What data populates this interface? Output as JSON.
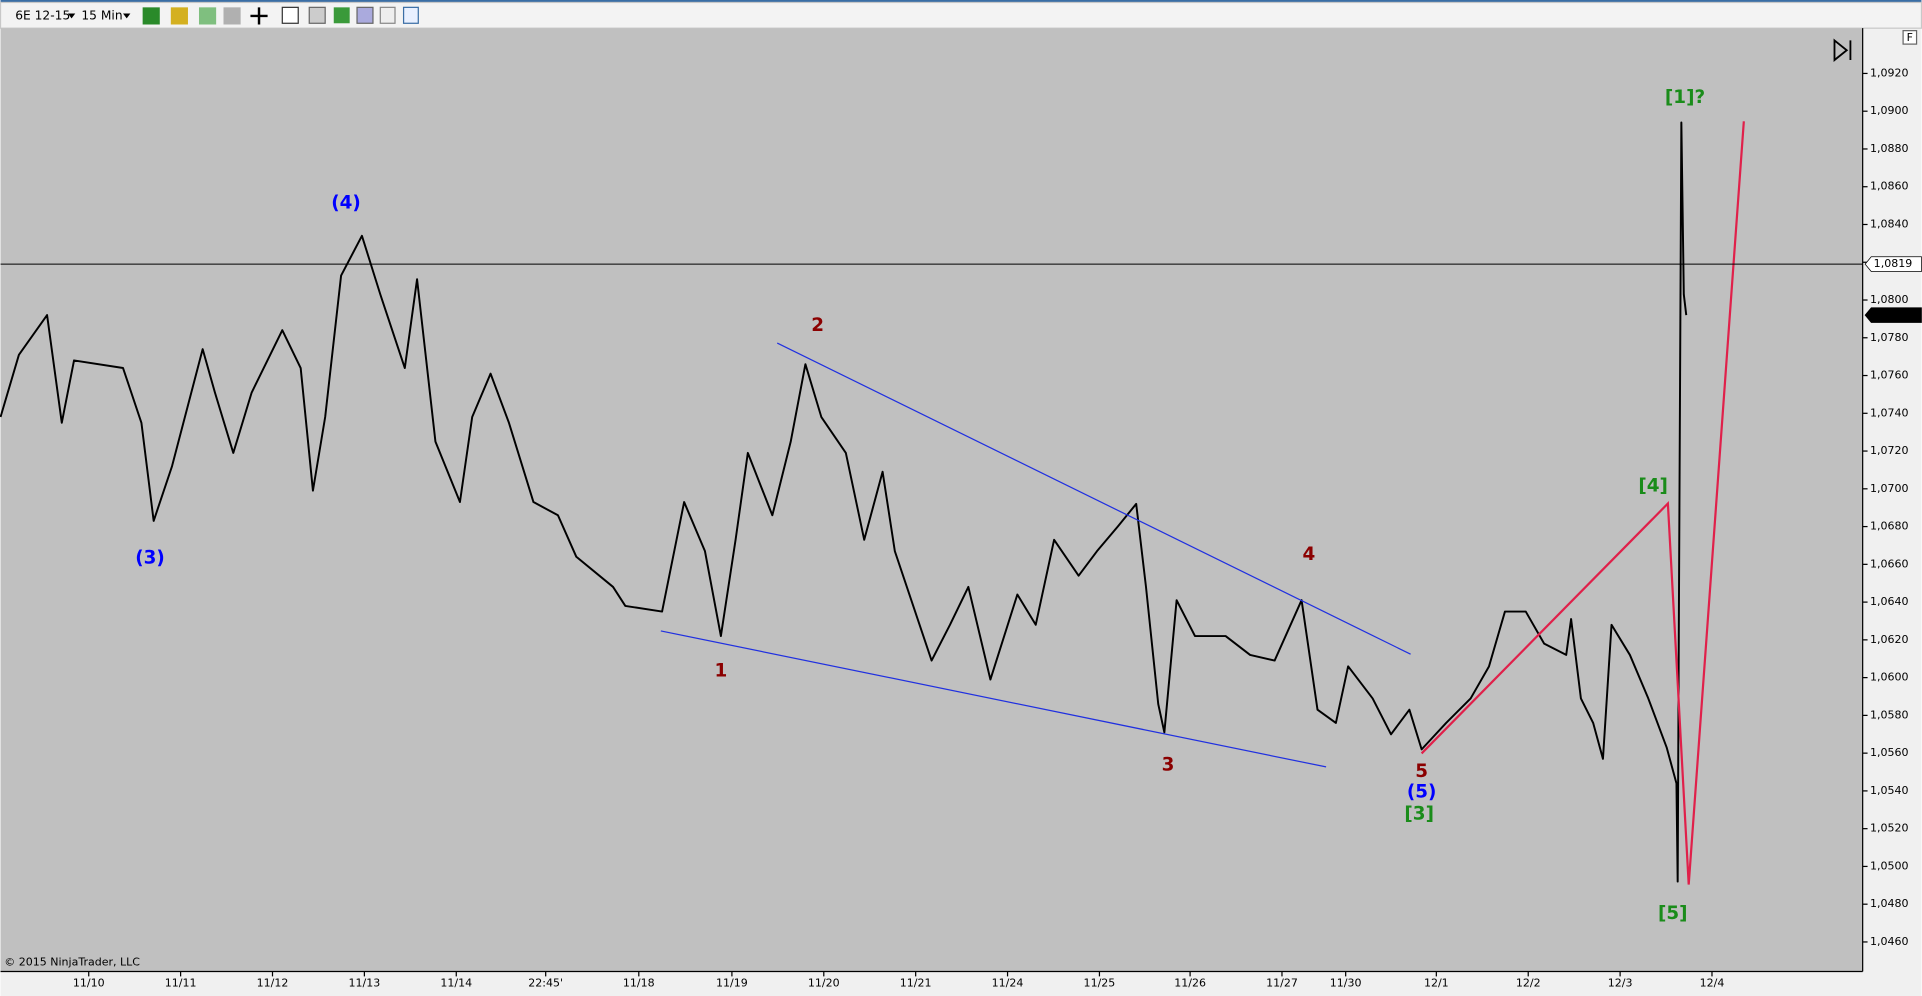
{
  "toolbar": {
    "instrument": "6E 12-15",
    "interval": "15 Min"
  },
  "copyright": "© 2015 NinjaTrader, LLC",
  "panel_button": "F",
  "chart_data": {
    "type": "line",
    "color": "#000000",
    "x": [
      0,
      15,
      38,
      50,
      60,
      100,
      115,
      125,
      140,
      165,
      175,
      190,
      205,
      230,
      245,
      255,
      265,
      278,
      295,
      310,
      330,
      340,
      355,
      375,
      385,
      400,
      415,
      435,
      455,
      470,
      500,
      510,
      540,
      558,
      575,
      588,
      600,
      610,
      630,
      645,
      657,
      670,
      690,
      705,
      720,
      730,
      760,
      775,
      790,
      808,
      830,
      845,
      860,
      880,
      895,
      912,
      927,
      935,
      945,
      950,
      960,
      975,
      1000,
      1020,
      1040,
      1062,
      1075,
      1090,
      1100,
      1120,
      1135,
      1150,
      1160,
      1180,
      1200,
      1215,
      1228,
      1245,
      1260,
      1278,
      1282,
      1290,
      1300,
      1308,
      1315,
      1330,
      1345,
      1360,
      1368,
      1369,
      1370,
      1372,
      1374,
      1376
    ],
    "values": [
      1.0738,
      1.0771,
      1.0792,
      1.0735,
      1.0768,
      1.0764,
      1.0735,
      1.0683,
      1.0712,
      1.0774,
      1.0751,
      1.0719,
      1.0751,
      1.0784,
      1.0764,
      1.0699,
      1.0738,
      1.0813,
      1.0834,
      1.0803,
      1.0764,
      1.0811,
      1.0725,
      1.0693,
      1.0738,
      1.0761,
      1.0735,
      1.0693,
      1.0686,
      1.0664,
      1.0648,
      1.0638,
      1.0635,
      1.0693,
      1.0667,
      1.0622,
      1.0673,
      1.0719,
      1.0686,
      1.0725,
      1.0766,
      1.0738,
      1.0719,
      1.0673,
      1.0709,
      1.0667,
      1.0609,
      1.0628,
      1.0648,
      1.0599,
      1.0644,
      1.0628,
      1.0673,
      1.0654,
      1.0667,
      1.068,
      1.0692,
      1.0648,
      1.0586,
      1.0571,
      1.0641,
      1.0622,
      1.0622,
      1.0612,
      1.0609,
      1.0641,
      1.0583,
      1.0576,
      1.0606,
      1.0589,
      1.057,
      1.0583,
      1.0562,
      1.0576,
      1.0589,
      1.0606,
      1.0635,
      1.0635,
      1.0618,
      1.0612,
      1.0631,
      1.0589,
      1.0576,
      1.0557,
      1.0628,
      1.0612,
      1.0589,
      1.0563,
      1.0544,
      1.0492,
      1.0635,
      1.0894,
      1.0803,
      1.0792
    ],
    "xlim": [
      0,
      1520
    ],
    "xticks": [
      {
        "value": 72,
        "label": "11/10"
      },
      {
        "value": 147,
        "label": "11/11"
      },
      {
        "value": 222,
        "label": "11/12"
      },
      {
        "value": 297,
        "label": "11/13"
      },
      {
        "value": 372,
        "label": "11/14"
      },
      {
        "value": 445,
        "label": "22:45'"
      },
      {
        "value": 521,
        "label": "11/18"
      },
      {
        "value": 597,
        "label": "11/19"
      },
      {
        "value": 672,
        "label": "11/20"
      },
      {
        "value": 747,
        "label": "11/21"
      },
      {
        "value": 822,
        "label": "11/24"
      },
      {
        "value": 897,
        "label": "11/25"
      },
      {
        "value": 971,
        "label": "11/26"
      },
      {
        "value": 1046,
        "label": "11/27"
      },
      {
        "value": 1098,
        "label": "11/30"
      },
      {
        "value": 1172,
        "label": "12/1"
      },
      {
        "value": 1247,
        "label": "12/2"
      },
      {
        "value": 1322,
        "label": "12/3"
      },
      {
        "value": 1397,
        "label": "12/4"
      }
    ],
    "ylim": [
      1.0445,
      1.0943
    ],
    "yticks": [
      {
        "value": 1.046,
        "label": "1,0460"
      },
      {
        "value": 1.048,
        "label": "1,0480"
      },
      {
        "value": 1.05,
        "label": "1,0500"
      },
      {
        "value": 1.052,
        "label": "1,0520"
      },
      {
        "value": 1.054,
        "label": "1,0540"
      },
      {
        "value": 1.056,
        "label": "1,0560"
      },
      {
        "value": 1.058,
        "label": "1,0580"
      },
      {
        "value": 1.06,
        "label": "1,0600"
      },
      {
        "value": 1.062,
        "label": "1,0620"
      },
      {
        "value": 1.064,
        "label": "1,0640"
      },
      {
        "value": 1.066,
        "label": "1,0660"
      },
      {
        "value": 1.068,
        "label": "1,0680"
      },
      {
        "value": 1.07,
        "label": "1,0700"
      },
      {
        "value": 1.072,
        "label": "1,0720"
      },
      {
        "value": 1.074,
        "label": "1,0740"
      },
      {
        "value": 1.076,
        "label": "1,0760"
      },
      {
        "value": 1.078,
        "label": "1,0780"
      },
      {
        "value": 1.08,
        "label": "1,0800"
      },
      {
        "value": 1.082,
        "label": "1,0820"
      },
      {
        "value": 1.084,
        "label": "1,0840"
      },
      {
        "value": 1.086,
        "label": "1,0860"
      },
      {
        "value": 1.088,
        "label": "1,0880"
      },
      {
        "value": 1.09,
        "label": "1,0900"
      },
      {
        "value": 1.092,
        "label": "1,0920"
      }
    ],
    "price_markers": [
      {
        "value": 1.0819,
        "label": "1,0819",
        "style": "line"
      },
      {
        "value": 1.0792,
        "label": "1,0792",
        "style": "last"
      }
    ],
    "annotations": [
      {
        "text": "(4)",
        "color": "#0000ff"
      },
      {
        "text": "(3)",
        "color": "#0000ff"
      },
      {
        "text": "2",
        "color": "#8b0000"
      },
      {
        "text": "1",
        "color": "#8b0000"
      },
      {
        "text": "3",
        "color": "#8b0000"
      },
      {
        "text": "4",
        "color": "#8b0000"
      },
      {
        "text": "5",
        "color": "#8b0000"
      },
      {
        "text": "(5)",
        "color": "#0000ff"
      },
      {
        "text": "[3]",
        "color": "#1a8c1a"
      },
      {
        "text": "[4]",
        "color": "#1a8c1a"
      },
      {
        "text": "[5]",
        "color": "#1a8c1a"
      },
      {
        "text": "[1]?",
        "color": "#1a8c1a"
      }
    ]
  }
}
